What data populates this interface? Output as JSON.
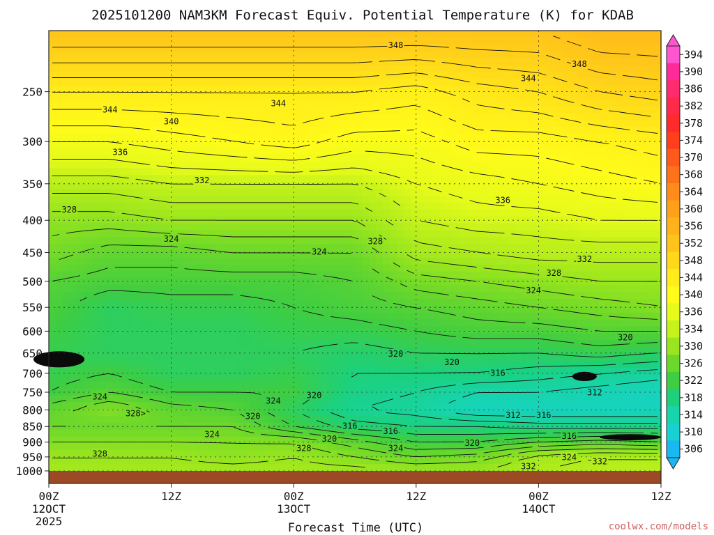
{
  "title": "2025101200 NAM3KM Forecast Equiv. Potential Temperature (K) for KDAB",
  "credit": "coolwx.com/models",
  "chart_data": {
    "type": "heatmap",
    "title": "2025101200 NAM3KM Forecast Equiv. Potential Temperature (K) for KDAB",
    "xlabel": "Forecast Time (UTC)",
    "ylabel": "",
    "y_scale": "log-pressure",
    "y_inverted": true,
    "ylim": [
      1000,
      200
    ],
    "xlim_hours": [
      0,
      60
    ],
    "x_ticks": [
      {
        "hour": 0,
        "label": "00Z",
        "date": "12OCT",
        "year": "2025"
      },
      {
        "hour": 12,
        "label": "12Z",
        "date": "",
        "year": ""
      },
      {
        "hour": 24,
        "label": "00Z",
        "date": "13OCT",
        "year": ""
      },
      {
        "hour": 36,
        "label": "12Z",
        "date": "",
        "year": ""
      },
      {
        "hour": 48,
        "label": "00Z",
        "date": "14OCT",
        "year": ""
      },
      {
        "hour": 60,
        "label": "12Z",
        "date": "",
        "year": ""
      }
    ],
    "y_ticks": [
      250,
      300,
      350,
      400,
      450,
      500,
      550,
      600,
      650,
      700,
      750,
      800,
      850,
      900,
      950,
      1000
    ],
    "grid": true,
    "surface_color": "#9c4a26",
    "colorbar": {
      "location": "right",
      "labels": [
        394,
        390,
        386,
        382,
        378,
        374,
        370,
        368,
        364,
        360,
        356,
        352,
        348,
        344,
        340,
        336,
        334,
        330,
        326,
        322,
        318,
        314,
        310,
        306
      ],
      "colors": [
        "#ff55d0",
        "#ff2a9a",
        "#ff2b6e",
        "#ff2a4a",
        "#ff2a2a",
        "#ff3e1e",
        "#ff5a1a",
        "#ff721a",
        "#ff8c1a",
        "#ffa01a",
        "#ffb21a",
        "#ffc41a",
        "#ffd81a",
        "#ffec1a",
        "#fffb1a",
        "#e6fb1a",
        "#c4f21a",
        "#9ae61e",
        "#6cd82a",
        "#3fcd42",
        "#1cd07c",
        "#17d4aa",
        "#18d2d2",
        "#1ab8f0"
      ],
      "arrows": [
        "top",
        "bottom"
      ]
    },
    "field_levels_hpa": [
      200,
      250,
      300,
      350,
      400,
      450,
      500,
      550,
      600,
      650,
      700,
      750,
      800,
      850,
      900,
      950,
      1000
    ],
    "field_hours": [
      0,
      6,
      12,
      18,
      24,
      30,
      36,
      42,
      48,
      54,
      60
    ],
    "theta_e_K": [
      [
        352,
        352,
        352,
        352,
        352,
        352,
        352,
        352,
        352,
        354,
        354
      ],
      [
        344,
        344,
        344,
        344,
        344,
        344,
        343,
        345,
        346,
        348,
        349
      ],
      [
        338,
        338,
        339,
        340,
        341,
        339,
        339,
        341,
        341,
        342,
        343
      ],
      [
        333,
        333,
        334,
        334,
        334,
        334,
        336,
        337,
        338,
        339,
        340
      ],
      [
        329,
        329,
        330,
        330,
        330,
        330,
        334,
        335,
        335,
        336,
        336
      ],
      [
        327,
        325,
        325,
        326,
        326,
        326,
        331,
        332,
        333,
        333,
        333
      ],
      [
        324,
        323,
        323,
        323,
        323,
        324,
        327,
        328,
        329,
        330,
        330
      ],
      [
        323,
        320,
        321,
        321,
        322,
        323,
        324,
        325,
        326,
        327,
        328
      ],
      [
        322,
        320,
        320,
        320,
        321,
        321,
        322,
        323,
        323,
        324,
        324
      ],
      [
        321,
        320,
        320,
        320,
        320,
        319,
        320,
        320,
        320,
        321,
        320
      ],
      [
        321,
        322,
        320,
        320,
        321,
        318,
        318,
        318,
        317,
        316,
        315
      ],
      [
        322,
        324,
        322,
        322,
        322,
        317,
        316,
        314,
        314,
        313,
        312
      ],
      [
        325,
        328,
        325,
        324,
        320,
        316,
        315,
        312,
        312,
        312,
        312
      ],
      [
        326,
        326,
        326,
        326,
        322,
        319,
        318,
        318,
        317,
        317,
        317
      ],
      [
        328,
        328,
        328,
        328,
        328,
        325,
        322,
        322,
        324,
        325,
        324
      ],
      [
        330,
        330,
        330,
        329,
        330,
        328,
        326,
        327,
        331,
        332,
        332
      ],
      [
        331,
        331,
        331,
        331,
        331,
        331,
        330,
        330,
        332,
        333,
        333
      ]
    ],
    "contour_labels": [
      {
        "text": "348",
        "hour": 34.0,
        "p": 211
      },
      {
        "text": "348",
        "hour": 52.0,
        "p": 226
      },
      {
        "text": "344",
        "hour": 47.0,
        "p": 238
      },
      {
        "text": "344",
        "hour": 22.5,
        "p": 261
      },
      {
        "text": "344",
        "hour": 6.0,
        "p": 267
      },
      {
        "text": "340",
        "hour": 12.0,
        "p": 279
      },
      {
        "text": "336",
        "hour": 7.0,
        "p": 312
      },
      {
        "text": "332",
        "hour": 15.0,
        "p": 346
      },
      {
        "text": "336",
        "hour": 44.5,
        "p": 372
      },
      {
        "text": "328",
        "hour": 2.0,
        "p": 385
      },
      {
        "text": "324",
        "hour": 12.0,
        "p": 428
      },
      {
        "text": "328",
        "hour": 32.0,
        "p": 432
      },
      {
        "text": "324",
        "hour": 26.5,
        "p": 449
      },
      {
        "text": "332",
        "hour": 52.5,
        "p": 461
      },
      {
        "text": "328",
        "hour": 49.5,
        "p": 485
      },
      {
        "text": "324",
        "hour": 47.5,
        "p": 517
      },
      {
        "text": "320",
        "hour": 56.5,
        "p": 614
      },
      {
        "text": "320",
        "hour": 34.0,
        "p": 652
      },
      {
        "text": "320",
        "hour": 39.5,
        "p": 672
      },
      {
        "text": "316",
        "hour": 44.0,
        "p": 699
      },
      {
        "text": "312",
        "hour": 53.5,
        "p": 751
      },
      {
        "text": "324",
        "hour": 5.0,
        "p": 762
      },
      {
        "text": "320",
        "hour": 26.0,
        "p": 759
      },
      {
        "text": "324",
        "hour": 22.0,
        "p": 774
      },
      {
        "text": "328>",
        "hour": 8.5,
        "p": 811
      },
      {
        "text": "320",
        "hour": 20.0,
        "p": 819
      },
      {
        "text": "312",
        "hour": 45.5,
        "p": 816
      },
      {
        "text": "316",
        "hour": 48.5,
        "p": 816
      },
      {
        "text": "316",
        "hour": 29.5,
        "p": 849
      },
      {
        "text": "316",
        "hour": 33.5,
        "p": 865
      },
      {
        "text": "324",
        "hour": 16.0,
        "p": 875
      },
      {
        "text": "320",
        "hour": 27.5,
        "p": 889
      },
      {
        "text": "316",
        "hour": 51.0,
        "p": 880
      },
      {
        "text": "320",
        "hour": 41.5,
        "p": 903
      },
      {
        "text": "324",
        "hour": 34.0,
        "p": 921
      },
      {
        "text": "328",
        "hour": 25.0,
        "p": 921
      },
      {
        "text": "328",
        "hour": 5.0,
        "p": 939
      },
      {
        "text": "324",
        "hour": 51.0,
        "p": 951
      },
      {
        "text": "332",
        "hour": 54.0,
        "p": 966
      },
      {
        "text": "332",
        "hour": 47.0,
        "p": 983
      }
    ],
    "dark_features": [
      {
        "name": "dark-cell-left",
        "hour": 1.0,
        "p": 665,
        "rx": 2.5,
        "rp": 20
      },
      {
        "name": "dark-cell-mid",
        "hour": 52.5,
        "p": 708,
        "rx": 1.2,
        "rp": 12
      },
      {
        "name": "dark-band-low",
        "hour": 57.0,
        "p": 884,
        "rx": 3.0,
        "rp": 10
      }
    ]
  }
}
